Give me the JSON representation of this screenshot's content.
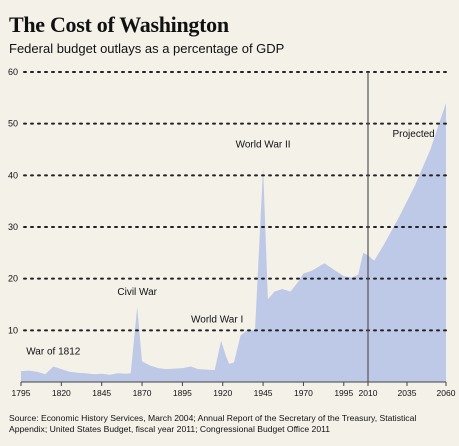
{
  "chart_data": {
    "type": "area",
    "title": "The Cost of Washington",
    "subtitle": "Federal budget outlays as a percentage of GDP",
    "xlabel": "",
    "ylabel": "",
    "ylim": [
      0,
      60
    ],
    "yticks": [
      10,
      20,
      30,
      40,
      50,
      60
    ],
    "grid": true,
    "fill_color": "#bdc9e6",
    "x_tick_labels": [
      "1795",
      "1820",
      "1845",
      "1870",
      "1895",
      "1920",
      "1945",
      "1970",
      "1995",
      "2010",
      "2035",
      "2060"
    ],
    "points": [
      {
        "x": "1795",
        "y": 2.1
      },
      {
        "x": "1800",
        "y": 2.2
      },
      {
        "x": "1805",
        "y": 2.0
      },
      {
        "x": "1810",
        "y": 1.5
      },
      {
        "x": "1815",
        "y": 3.0
      },
      {
        "x": "1820",
        "y": 2.5
      },
      {
        "x": "1825",
        "y": 2.0
      },
      {
        "x": "1830",
        "y": 1.8
      },
      {
        "x": "1835",
        "y": 1.7
      },
      {
        "x": "1840",
        "y": 1.5
      },
      {
        "x": "1845",
        "y": 1.6
      },
      {
        "x": "1850",
        "y": 1.4
      },
      {
        "x": "1855",
        "y": 1.7
      },
      {
        "x": "1860",
        "y": 1.6
      },
      {
        "x": "1863",
        "y": 1.7
      },
      {
        "x": "1867",
        "y": 14.5
      },
      {
        "x": "1870",
        "y": 4.0
      },
      {
        "x": "1875",
        "y": 3.2
      },
      {
        "x": "1880",
        "y": 2.7
      },
      {
        "x": "1885",
        "y": 2.5
      },
      {
        "x": "1890",
        "y": 2.6
      },
      {
        "x": "1895",
        "y": 2.7
      },
      {
        "x": "1900",
        "y": 3.0
      },
      {
        "x": "1905",
        "y": 2.5
      },
      {
        "x": "1910",
        "y": 2.4
      },
      {
        "x": "1915",
        "y": 2.3
      },
      {
        "x": "1919",
        "y": 8.0
      },
      {
        "x": "1922",
        "y": 5.0
      },
      {
        "x": "1924",
        "y": 3.5
      },
      {
        "x": "1927",
        "y": 3.8
      },
      {
        "x": "1931",
        "y": 9.0
      },
      {
        "x": "1935",
        "y": 10.0
      },
      {
        "x": "1940",
        "y": 10.0
      },
      {
        "x": "1945",
        "y": 41.5
      },
      {
        "x": "1948",
        "y": 16.0
      },
      {
        "x": "1952",
        "y": 17.5
      },
      {
        "x": "1957",
        "y": 18.0
      },
      {
        "x": "1962",
        "y": 17.5
      },
      {
        "x": "1967",
        "y": 19.5
      },
      {
        "x": "1970",
        "y": 21.0
      },
      {
        "x": "1975",
        "y": 21.5
      },
      {
        "x": "1983",
        "y": 23.0
      },
      {
        "x": "1990",
        "y": 21.5
      },
      {
        "x": "1995",
        "y": 20.5
      },
      {
        "x": "2000",
        "y": 20.2
      },
      {
        "x": "2004",
        "y": 20.8
      },
      {
        "x": "2007",
        "y": 25.0
      },
      {
        "x": "2010",
        "y": 24.5
      },
      {
        "x": "2014",
        "y": 23.5
      },
      {
        "x": "2020",
        "y": 26.5
      },
      {
        "x": "2030",
        "y": 32.0
      },
      {
        "x": "2040",
        "y": 38.0
      },
      {
        "x": "2050",
        "y": 45.0
      },
      {
        "x": "2060",
        "y": 54.0
      }
    ],
    "divider_at": "2010",
    "annotations": [
      {
        "text": "War of 1812",
        "x": "1815",
        "y": 3.0
      },
      {
        "text": "Civil War",
        "x": "1867",
        "y": 14.5
      },
      {
        "text": "World War I",
        "x": "1919",
        "y": 8.0
      },
      {
        "text": "World War II",
        "x": "1945",
        "y": 41.5
      },
      {
        "text": "Projected",
        "x": "2020",
        "y": 49
      }
    ],
    "source": "Source: Economic History Services, March 2004; Annual Report of the Secretary of the Treasury, Statistical Appendix; United States Budget, fiscal year 2011; Congressional Budget Office 2011"
  }
}
